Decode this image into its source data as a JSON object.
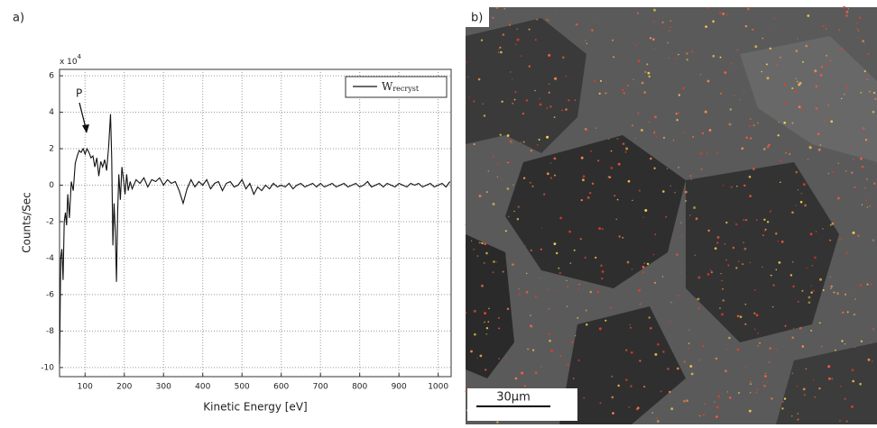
{
  "panels": {
    "a": "a)",
    "b": "b)"
  },
  "chart_data": {
    "type": "line",
    "y_label": "Counts/Sec",
    "x_label": "Kinetic Energy [eV]",
    "y_multiplier": {
      "base": "x 10",
      "exponent": "4"
    },
    "annotation": "P",
    "xlim": [
      35,
      1033
    ],
    "ylim": [
      -10.5,
      6.35
    ],
    "xticks": [
      100,
      200,
      300,
      400,
      500,
      600,
      700,
      800,
      900,
      1000
    ],
    "yticks": [
      -10,
      -8,
      -6,
      -4,
      -2,
      0,
      2,
      4,
      6
    ],
    "grid": true,
    "legend": "upper right",
    "series": [
      {
        "name": "W",
        "name_subscript": "recryst",
        "color": "#111111",
        "x": [
          35,
          38,
          41,
          44,
          47,
          50,
          53,
          56,
          60,
          65,
          70,
          75,
          80,
          85,
          90,
          95,
          100,
          105,
          110,
          115,
          120,
          125,
          130,
          135,
          140,
          145,
          150,
          155,
          160,
          165,
          168,
          171,
          174,
          177,
          180,
          183,
          186,
          190,
          194,
          198,
          202,
          206,
          210,
          215,
          220,
          230,
          240,
          250,
          260,
          270,
          280,
          290,
          300,
          310,
          320,
          330,
          340,
          350,
          360,
          370,
          380,
          390,
          400,
          410,
          420,
          430,
          440,
          450,
          460,
          470,
          480,
          490,
          500,
          510,
          520,
          530,
          540,
          550,
          560,
          570,
          580,
          590,
          600,
          610,
          620,
          630,
          640,
          650,
          660,
          670,
          680,
          690,
          700,
          710,
          720,
          730,
          740,
          750,
          760,
          770,
          780,
          790,
          800,
          810,
          820,
          830,
          840,
          850,
          860,
          870,
          880,
          890,
          900,
          910,
          920,
          930,
          940,
          950,
          960,
          970,
          980,
          990,
          1000,
          1010,
          1020,
          1030
        ],
        "values": [
          -9.8,
          -4,
          -3.5,
          -5.2,
          -2,
          -1.5,
          -2.2,
          -0.5,
          -1.8,
          0.2,
          -0.3,
          1.2,
          1.6,
          1.9,
          1.8,
          2,
          1.7,
          2,
          1.8,
          1.5,
          1.6,
          1.0,
          1.5,
          0.5,
          1.3,
          1.0,
          1.4,
          0.8,
          2.1,
          3.9,
          1.5,
          -3.3,
          -1.0,
          -2.5,
          -5.3,
          -1.5,
          0.6,
          -0.8,
          1.0,
          0.3,
          -0.5,
          0.6,
          -0.3,
          0.2,
          -0.2,
          0.3,
          0.1,
          0.4,
          -0.1,
          0.3,
          0.2,
          0.4,
          0.0,
          0.3,
          0.1,
          0.2,
          -0.3,
          -1.0,
          -0.2,
          0.3,
          -0.1,
          0.2,
          0.0,
          0.3,
          -0.2,
          0.1,
          0.2,
          -0.3,
          0.1,
          0.2,
          -0.1,
          0.0,
          0.3,
          -0.2,
          0.1,
          -0.5,
          -0.1,
          -0.3,
          0.0,
          -0.2,
          0.1,
          -0.1,
          0.0,
          -0.1,
          0.1,
          -0.2,
          0.0,
          0.1,
          -0.1,
          0.0,
          0.1,
          -0.1,
          0.1,
          -0.1,
          0.0,
          0.1,
          -0.1,
          0.0,
          0.1,
          -0.1,
          0.0,
          0.1,
          -0.1,
          0.0,
          0.2,
          -0.1,
          0.0,
          0.1,
          -0.1,
          0.1,
          0.0,
          -0.1,
          0.1,
          0.0,
          -0.1,
          0.1,
          0.0,
          0.1,
          -0.1,
          0.0,
          0.1,
          -0.1,
          0.0,
          0.1,
          -0.1,
          0.2
        ]
      }
    ]
  },
  "image": {
    "scale_bar": "30μm"
  }
}
